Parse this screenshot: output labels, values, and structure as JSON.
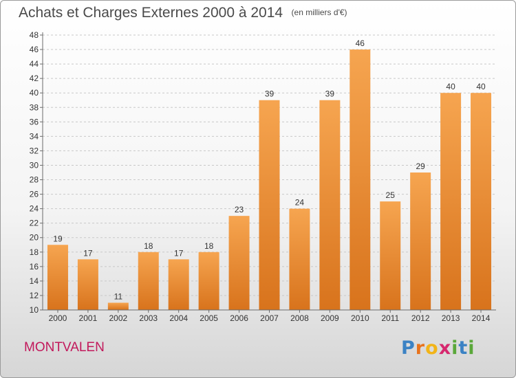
{
  "header": {
    "title": "Achats et Charges Externes 2000 à 2014",
    "unit": "(en milliers d'€)"
  },
  "footer": {
    "town": "MONTVALEN",
    "logo": {
      "letters": [
        "P",
        "r",
        "o",
        "x",
        "i",
        "t",
        "i"
      ],
      "colors": [
        "#3b82c4",
        "#e8731c",
        "#f2b418",
        "#d6286e",
        "#5aa83a",
        "#3b82c4",
        "#5aa83a"
      ]
    }
  },
  "chart_data": {
    "type": "bar",
    "categories": [
      "2000",
      "2001",
      "2002",
      "2003",
      "2004",
      "2005",
      "2006",
      "2007",
      "2008",
      "2009",
      "2010",
      "2011",
      "2012",
      "2013",
      "2014"
    ],
    "values": [
      19,
      17,
      11,
      18,
      17,
      18,
      23,
      39,
      24,
      39,
      46,
      25,
      29,
      40,
      40
    ],
    "title": "Achats et Charges Externes 2000 à 2014",
    "ylim": [
      10,
      48
    ],
    "yticks": [
      10,
      12,
      14,
      16,
      18,
      20,
      22,
      24,
      26,
      28,
      30,
      32,
      34,
      36,
      38,
      40,
      42,
      44,
      46,
      48
    ],
    "grid": true,
    "legend": "none",
    "colors": {
      "bar_light": "#f6a550",
      "bar_dark": "#d8731c",
      "grid": "#c8c8c8",
      "axis": "#6a6a6a",
      "text": "#333333"
    }
  }
}
